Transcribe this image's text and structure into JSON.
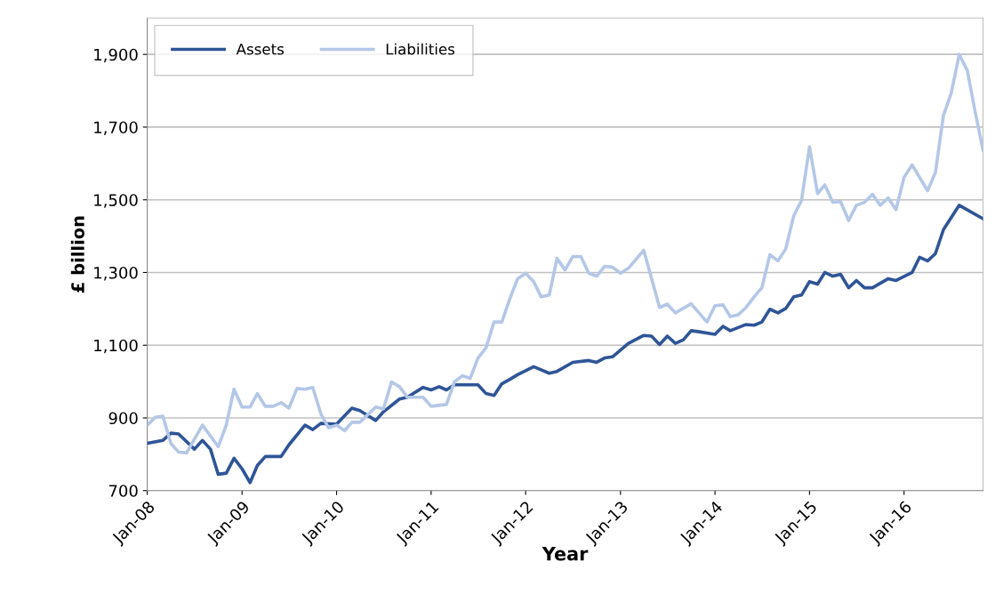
{
  "chart_data": {
    "type": "line",
    "xlabel": "Year",
    "ylabel": "£ billion",
    "ylim": [
      700,
      2000
    ],
    "yticks": [
      {
        "value": 700,
        "label": "700"
      },
      {
        "value": 900,
        "label": "900"
      },
      {
        "value": 1100,
        "label": "1,100"
      },
      {
        "value": 1300,
        "label": "1,300"
      },
      {
        "value": 1500,
        "label": "1,500"
      },
      {
        "value": 1700,
        "label": "1,700"
      },
      {
        "value": 1900,
        "label": "1,900"
      }
    ],
    "xlim": [
      "2008-01",
      "2016-11"
    ],
    "xticks": [
      {
        "value": "2008-01",
        "label": "Jan-08"
      },
      {
        "value": "2009-01",
        "label": "Jan-09"
      },
      {
        "value": "2010-01",
        "label": "Jan-10"
      },
      {
        "value": "2011-01",
        "label": "Jan-11"
      },
      {
        "value": "2012-01",
        "label": "Jan-12"
      },
      {
        "value": "2013-01",
        "label": "Jan-13"
      },
      {
        "value": "2014-01",
        "label": "Jan-14"
      },
      {
        "value": "2015-01",
        "label": "Jan-15"
      },
      {
        "value": "2016-01",
        "label": "Jan-16"
      }
    ],
    "grid": "y",
    "legend": "top left",
    "marker": "none",
    "line_style": "solid",
    "series": [
      {
        "name": "Assets",
        "color": "#2f5597",
        "x": [
          "2008-01",
          "2008-03",
          "2008-04",
          "2008-05",
          "2008-07",
          "2008-08",
          "2008-09",
          "2008-10",
          "2008-11",
          "2008-12",
          "2009-01",
          "2009-02",
          "2009-03",
          "2009-04",
          "2009-06",
          "2009-07",
          "2009-09",
          "2009-10",
          "2009-11",
          "2010-01",
          "2010-03",
          "2010-04",
          "2010-06",
          "2010-07",
          "2010-09",
          "2010-10",
          "2010-12",
          "2011-01",
          "2011-02",
          "2011-03",
          "2011-04",
          "2011-07",
          "2011-08",
          "2011-09",
          "2011-10",
          "2011-11",
          "2011-12",
          "2012-02",
          "2012-04",
          "2012-05",
          "2012-07",
          "2012-09",
          "2012-10",
          "2012-11",
          "2012-12",
          "2013-02",
          "2013-04",
          "2013-05",
          "2013-06",
          "2013-07",
          "2013-08",
          "2013-09",
          "2013-10",
          "2013-11",
          "2014-01",
          "2014-02",
          "2014-03",
          "2014-05",
          "2014-06",
          "2014-07",
          "2014-08",
          "2014-09",
          "2014-10",
          "2014-11",
          "2014-12",
          "2015-01",
          "2015-02",
          "2015-03",
          "2015-04",
          "2015-05",
          "2015-06",
          "2015-07",
          "2015-08",
          "2015-09",
          "2015-11",
          "2015-12",
          "2016-02",
          "2016-03",
          "2016-04",
          "2016-05",
          "2016-06",
          "2016-08",
          "2016-11"
        ],
        "values": [
          830,
          838,
          858,
          856,
          814,
          838,
          814,
          745,
          748,
          789,
          760,
          722,
          769,
          794,
          794,
          826,
          880,
          868,
          885,
          883,
          927,
          920,
          893,
          917,
          952,
          957,
          984,
          977,
          986,
          977,
          991,
          991,
          967,
          962,
          994,
          1006,
          1019,
          1041,
          1023,
          1028,
          1053,
          1058,
          1053,
          1065,
          1068,
          1105,
          1127,
          1125,
          1102,
          1125,
          1105,
          1115,
          1140,
          1137,
          1130,
          1152,
          1140,
          1157,
          1155,
          1164,
          1199,
          1189,
          1201,
          1233,
          1238,
          1275,
          1268,
          1300,
          1290,
          1295,
          1258,
          1278,
          1258,
          1258,
          1283,
          1278,
          1300,
          1342,
          1332,
          1352,
          1418,
          1485,
          1448
        ]
      },
      {
        "name": "Liabilities",
        "color": "#b4c7e7",
        "x": [
          "2008-01",
          "2008-02",
          "2008-03",
          "2008-04",
          "2008-05",
          "2008-06",
          "2008-08",
          "2008-10",
          "2008-11",
          "2008-12",
          "2009-01",
          "2009-02",
          "2009-03",
          "2009-04",
          "2009-05",
          "2009-06",
          "2009-07",
          "2009-08",
          "2009-09",
          "2009-10",
          "2009-11",
          "2009-12",
          "2010-01",
          "2010-02",
          "2010-03",
          "2010-04",
          "2010-06",
          "2010-07",
          "2010-08",
          "2010-09",
          "2010-10",
          "2010-12",
          "2011-01",
          "2011-03",
          "2011-04",
          "2011-05",
          "2011-06",
          "2011-07",
          "2011-08",
          "2011-09",
          "2011-10",
          "2011-11",
          "2011-12",
          "2012-01",
          "2012-02",
          "2012-03",
          "2012-04",
          "2012-05",
          "2012-06",
          "2012-07",
          "2012-08",
          "2012-09",
          "2012-10",
          "2012-11",
          "2012-12",
          "2013-01",
          "2013-02",
          "2013-04",
          "2013-06",
          "2013-07",
          "2013-08",
          "2013-10",
          "2013-12",
          "2014-01",
          "2014-02",
          "2014-03",
          "2014-04",
          "2014-05",
          "2014-06",
          "2014-07",
          "2014-08",
          "2014-09",
          "2014-10",
          "2014-11",
          "2014-12",
          "2015-01",
          "2015-02",
          "2015-03",
          "2015-04",
          "2015-05",
          "2015-06",
          "2015-07",
          "2015-08",
          "2015-09",
          "2015-10",
          "2015-11",
          "2015-12",
          "2016-01",
          "2016-02",
          "2016-04",
          "2016-05",
          "2016-06",
          "2016-07",
          "2016-08",
          "2016-09",
          "2016-10",
          "2016-11"
        ],
        "values": [
          880,
          902,
          905,
          830,
          806,
          804,
          880,
          821,
          880,
          979,
          930,
          930,
          967,
          932,
          932,
          942,
          927,
          981,
          979,
          984,
          912,
          873,
          880,
          865,
          888,
          888,
          930,
          925,
          999,
          986,
          957,
          957,
          932,
          937,
          999,
          1016,
          1009,
          1065,
          1093,
          1164,
          1164,
          1228,
          1283,
          1298,
          1275,
          1233,
          1238,
          1339,
          1307,
          1344,
          1344,
          1298,
          1290,
          1317,
          1315,
          1298,
          1312,
          1361,
          1204,
          1213,
          1189,
          1214,
          1164,
          1209,
          1211,
          1179,
          1184,
          1204,
          1233,
          1258,
          1349,
          1332,
          1365,
          1456,
          1498,
          1646,
          1517,
          1541,
          1493,
          1495,
          1443,
          1485,
          1493,
          1515,
          1485,
          1505,
          1473,
          1562,
          1596,
          1525,
          1575,
          1732,
          1793,
          1900,
          1856,
          1744,
          1636
        ]
      }
    ]
  }
}
